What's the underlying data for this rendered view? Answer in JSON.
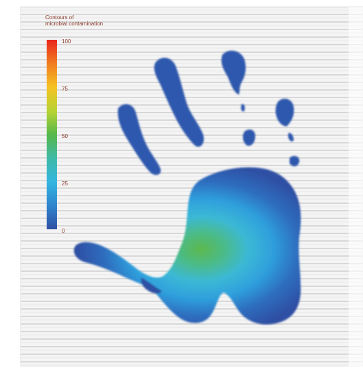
{
  "legend": {
    "title_line1": "Contours of",
    "title_line2": "microbial contamination",
    "ticks": [
      "100",
      "75",
      "50",
      "25",
      "0"
    ],
    "scale_min": 0,
    "scale_max": 100,
    "colors": {
      "high": "#e8261b",
      "upper": "#f5a623",
      "mid_upper": "#e3dc2a",
      "mid": "#56b84a",
      "lower": "#33b6e0",
      "low": "#2f4fa3"
    }
  },
  "image": {
    "subject": "handprint",
    "paper": "lined paper",
    "palm_peak_level": 50,
    "fingers_level": 5
  }
}
